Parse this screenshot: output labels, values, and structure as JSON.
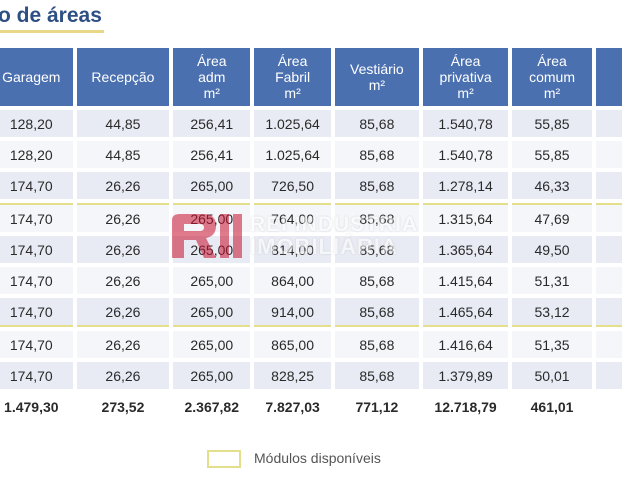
{
  "title": "o de áreas",
  "table": {
    "headers": [
      "Garagem",
      "Recepção",
      "Área adm m²",
      "Área Fabril m²",
      "Vestiário m²",
      "Área privativa m²",
      "Área comum m²",
      ""
    ],
    "rows": [
      [
        "128,20",
        "44,85",
        "256,41",
        "1.025,64",
        "85,68",
        "1.540,78",
        "55,85",
        ""
      ],
      [
        "128,20",
        "44,85",
        "256,41",
        "1.025,64",
        "85,68",
        "1.540,78",
        "55,85",
        ""
      ],
      [
        "174,70",
        "26,26",
        "265,00",
        "726,50",
        "85,68",
        "1.278,14",
        "46,33",
        ""
      ],
      [
        "174,70",
        "26,26",
        "265,00",
        "764,00",
        "85,68",
        "1.315,64",
        "47,69",
        ""
      ],
      [
        "174,70",
        "26,26",
        "265,00",
        "814,00",
        "85,68",
        "1.365,64",
        "49,50",
        ""
      ],
      [
        "174,70",
        "26,26",
        "265,00",
        "864,00",
        "85,68",
        "1.415,64",
        "51,31",
        ""
      ],
      [
        "174,70",
        "26,26",
        "265,00",
        "914,00",
        "85,68",
        "1.465,64",
        "53,12",
        ""
      ],
      [
        "174,70",
        "26,26",
        "265,00",
        "865,00",
        "85,68",
        "1.416,64",
        "51,35",
        ""
      ],
      [
        "174,70",
        "26,26",
        "265,00",
        "828,25",
        "85,68",
        "1.379,89",
        "50,01",
        ""
      ]
    ],
    "totals": [
      "1.479,30",
      "273,52",
      "2.367,82",
      "7.827,03",
      "771,12",
      "12.718,79",
      "461,01",
      ""
    ]
  },
  "legend": {
    "label": "Módulos disponíveis",
    "color": "#e4df8a"
  },
  "watermark": {
    "line1": "REI INDUSTRIA",
    "line2": "IMOBILIÁRIA",
    "color": "#c8102e"
  }
}
